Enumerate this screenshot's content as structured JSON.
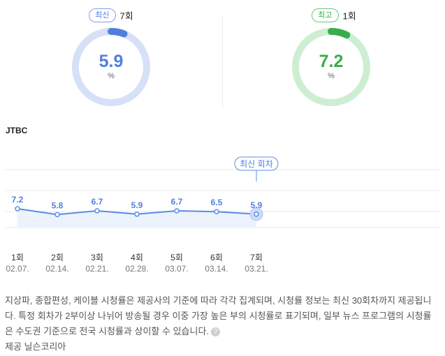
{
  "latest": {
    "badge": "최신",
    "count": "7회",
    "value": "5.9",
    "unit": "%",
    "fraction": 0.059,
    "color": "#4f7fe0",
    "track": "#d6e0f7"
  },
  "highest": {
    "badge": "최고",
    "count": "1회",
    "value": "7.2",
    "unit": "%",
    "fraction": 0.072,
    "color": "#3aad4a",
    "track": "#cdeed2"
  },
  "channel": "JTBC",
  "chart_data": {
    "type": "line",
    "categories": [
      "1회",
      "2회",
      "3회",
      "4회",
      "5회",
      "6회",
      "7회"
    ],
    "dates": [
      "02.07.",
      "02.14.",
      "02.21.",
      "02.28.",
      "03.07.",
      "03.14.",
      "03.21."
    ],
    "values": [
      7.2,
      5.8,
      6.7,
      5.9,
      6.7,
      6.5,
      5.9
    ],
    "value_labels": [
      "7.2",
      "5.8",
      "6.7",
      "5.9",
      "6.7",
      "6.5",
      "5.9"
    ],
    "callout": "최신 회차",
    "callout_index": 6,
    "colors": {
      "line": "#5b8be6",
      "area": "#edf3fd",
      "grid": "#e8e8e8"
    }
  },
  "footnote": {
    "text": "지상파, 종합편성, 케이블 시청률은 제공사의 기준에 따라 각각 집계되며, 시청률 정보는 최신 30회차까지 제공됩니다. 특정 회차가 2부이상 나뉘어 방송될 경우 이중 가장 높은 부의 시청률로 표기되며, 일부 뉴스 프로그램의 시청률은 수도권 기준으로 전국 시청률과 상이할 수 있습니다.",
    "help_icon": "?"
  },
  "provider": "제공 닐슨코리아"
}
